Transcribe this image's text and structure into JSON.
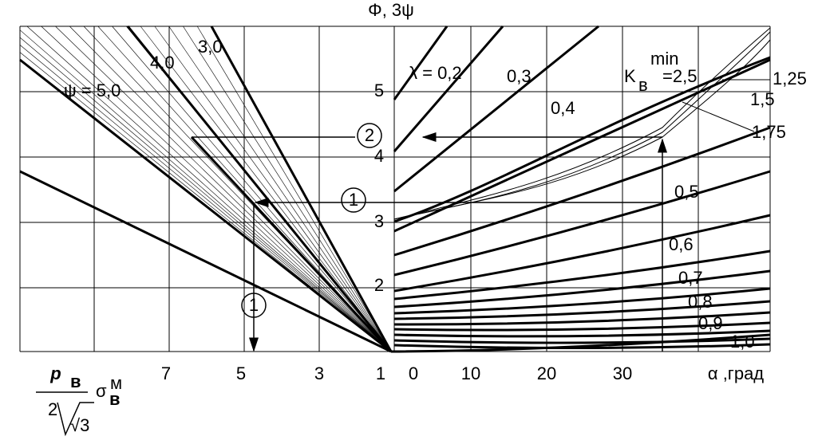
{
  "axis_title": "Φ, 3ψ",
  "y_ticks": [
    "5",
    "4",
    "3",
    "2"
  ],
  "x_left_ticks": [
    "7",
    "5",
    "3",
    "1"
  ],
  "x_right_ticks": [
    "0",
    "10",
    "20",
    "30"
  ],
  "x_right_title": "α ,град",
  "x_left_title": {
    "numerator": "p",
    "numerator_sub": "в",
    "denominator": "2",
    "root": "√3",
    "factor": "σ",
    "factor_sub": "в",
    "factor_sup": "м"
  },
  "psi_labels": [
    "ψ = 5,0",
    "4,0",
    "3,0"
  ],
  "lambda_labels": [
    "λ = 0,2",
    "0,3",
    "0,4",
    "0,5",
    "0,6",
    "0,7",
    "0,8",
    "0,9",
    "1,0"
  ],
  "k_label": {
    "symbol": "K",
    "sub": "в",
    "sup": "min",
    "value": "=2,5"
  },
  "k_values": [
    "1,25",
    "1,5",
    "1,75"
  ],
  "markers": [
    "2",
    "1",
    "1"
  ]
}
